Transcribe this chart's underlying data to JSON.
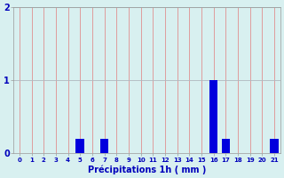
{
  "hours": [
    0,
    1,
    2,
    3,
    4,
    5,
    6,
    7,
    8,
    9,
    10,
    11,
    12,
    13,
    14,
    15,
    16,
    17,
    18,
    19,
    20,
    21
  ],
  "values": [
    0,
    0,
    0,
    0,
    0,
    0.2,
    0,
    0.2,
    0,
    0,
    0,
    0,
    0,
    0,
    0,
    0,
    1.0,
    0.2,
    0,
    0,
    0,
    0.2
  ],
  "bar_color": "#0000dd",
  "bg_color": "#d8f0f0",
  "grid_color_h": "#b0b8c0",
  "grid_color_v": "#e09090",
  "xlabel": "Précipitations 1h ( mm )",
  "xlabel_color": "#0000bb",
  "tick_color": "#0000bb",
  "ylim": [
    0,
    2
  ],
  "yticks": [
    0,
    1,
    2
  ],
  "xlim": [
    -0.5,
    21.5
  ]
}
